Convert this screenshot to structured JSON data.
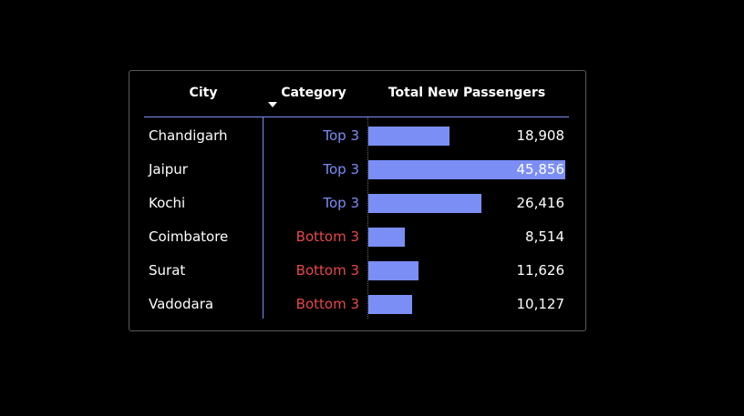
{
  "colors": {
    "background": "#000000",
    "bar": "#7b8ef5",
    "top_category": "#7b8ef5",
    "bottom_category": "#e84848",
    "text": "#ffffff"
  },
  "table": {
    "headers": {
      "city": "City",
      "category": "Category",
      "total": "Total New Passengers"
    },
    "sort_icon": "sort-descending-icon"
  },
  "chart_data": {
    "type": "table",
    "columns": [
      "City",
      "Category",
      "Total New Passengers"
    ],
    "xlim": [
      0,
      45856
    ],
    "rows": [
      {
        "city": "Chandigarh",
        "category": "Top 3",
        "value": 18908,
        "label": "18,908"
      },
      {
        "city": "Jaipur",
        "category": "Top 3",
        "value": 45856,
        "label": "45,856"
      },
      {
        "city": "Kochi",
        "category": "Top 3",
        "value": 26416,
        "label": "26,416"
      },
      {
        "city": "Coimbatore",
        "category": "Bottom 3",
        "value": 8514,
        "label": "8,514"
      },
      {
        "city": "Surat",
        "category": "Bottom 3",
        "value": 11626,
        "label": "11,626"
      },
      {
        "city": "Vadodara",
        "category": "Bottom 3",
        "value": 10127,
        "label": "10,127"
      }
    ]
  }
}
